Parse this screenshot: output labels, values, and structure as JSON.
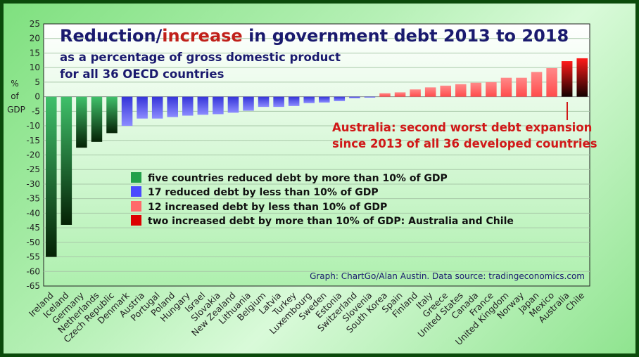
{
  "chart_data": {
    "type": "bar",
    "title_part1": "Reduction/",
    "title_highlight": "increase",
    "title_part2": " in government debt 2013 to 2018",
    "subtitle_line1": "as a percentage of gross domestic product",
    "subtitle_line2": "for all 36 OECD countries",
    "ylabel_line1": "%",
    "ylabel_line2": "of",
    "ylabel_line3": "GDP",
    "ylim": [
      -65,
      25
    ],
    "yticks": [
      25,
      20,
      15,
      10,
      5,
      0,
      -5,
      -10,
      -15,
      -20,
      -25,
      -30,
      -35,
      -40,
      -45,
      -50,
      -55,
      -60,
      -65
    ],
    "grid": true,
    "categories": [
      "Ireland",
      "Iceland",
      "Germany",
      "Netherlands",
      "Czech Republic",
      "Denmark",
      "Austria",
      "Portugal",
      "Poland",
      "Hungary",
      "Israel",
      "Slovakia",
      "New Zealand",
      "Lithuania",
      "Belgium",
      "Latvia",
      "Turkey",
      "Luxembourg",
      "Sweden",
      "Estonia",
      "Switzerland",
      "Slovenia",
      "South Korea",
      "Spain",
      "Finland",
      "Italy",
      "Greece",
      "United States",
      "Canada",
      "France",
      "United Kingdom",
      "Norway",
      "Japan",
      "Mexico",
      "Australia",
      "Chile"
    ],
    "values": [
      -55,
      -44,
      -17.5,
      -15.5,
      -12.5,
      -10,
      -7.5,
      -7.5,
      -7,
      -6.5,
      -6.2,
      -6,
      -5.5,
      -4.8,
      -3.5,
      -3.5,
      -3.2,
      -2.2,
      -2,
      -1.5,
      -0.5,
      -0.3,
      1.2,
      1.5,
      2.5,
      3.2,
      3.8,
      4.3,
      4.8,
      5,
      6.5,
      6.5,
      8.5,
      9.8,
      12.2,
      13.2
    ],
    "groups": [
      "dg",
      "dg",
      "dg",
      "dg",
      "dg",
      "b",
      "b",
      "b",
      "b",
      "b",
      "b",
      "b",
      "b",
      "b",
      "b",
      "b",
      "b",
      "b",
      "b",
      "b",
      "b",
      "b",
      "r",
      "r",
      "r",
      "r",
      "r",
      "r",
      "r",
      "r",
      "r",
      "r",
      "r",
      "r",
      "dr",
      "dr"
    ],
    "legend": [
      {
        "key": "dg",
        "label": "five countries reduced debt by more than 10% of GDP",
        "color": "#22a04a"
      },
      {
        "key": "b",
        "label": "17 reduced debt by less than 10% of GDP",
        "color": "#4a4aff"
      },
      {
        "key": "r",
        "label": "12 increased debt by less than 10% of GDP",
        "color": "#ff6a6a"
      },
      {
        "key": "dr",
        "label": "two increased debt by more than 10% of GDP: Australia and Chile",
        "color": "#dd0000"
      }
    ],
    "annotation_line1": "Australia: second worst debt expansion",
    "annotation_line2": "since 2013 of all 36 developed countries",
    "source": "Graph: ChartGo/Alan Austin. Data source: tradingeconomics.com"
  },
  "colors": {
    "title": "#1a1a6e",
    "highlight": "#c0201a",
    "annotation": "#d01818",
    "plot_bg_top": "#ffffff",
    "plot_bg_bottom": "#aef0ae",
    "grid": "#a8c8a8"
  }
}
